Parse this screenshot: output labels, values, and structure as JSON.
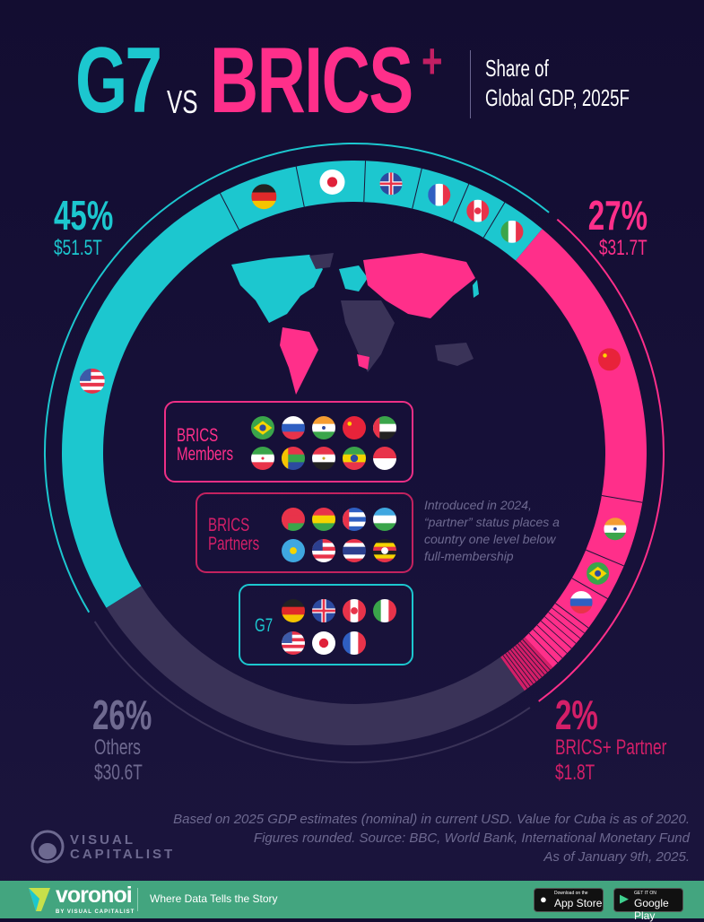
{
  "header": {
    "title_g7": "G7",
    "title_vs": "VS",
    "title_brics": "BRICS",
    "title_plus": "+",
    "subtitle_line1": "Share of",
    "subtitle_line2": "Global GDP, 2025F"
  },
  "labels": {
    "g7": {
      "percent": "45%",
      "value": "$51.5T"
    },
    "brics": {
      "percent": "27%",
      "value": "$31.7T"
    },
    "others": {
      "percent": "26%",
      "name": "Others",
      "value": "$30.6T"
    },
    "partner": {
      "percent": "2%",
      "name": "BRICS+ Partner",
      "value": "$1.8T"
    }
  },
  "legend": {
    "members": {
      "label_line1": "BRICS",
      "label_line2": "Members",
      "flags": [
        "flag-brazil-icon",
        "flag-russia-icon",
        "flag-india-icon",
        "flag-china-icon",
        "flag-uae-icon",
        "flag-iran-icon",
        "flag-south-africa-icon",
        "flag-egypt-icon",
        "flag-ethiopia-icon",
        "flag-indonesia-icon"
      ]
    },
    "partners": {
      "label_line1": "BRICS",
      "label_line2": "Partners",
      "flags": [
        "flag-belarus-icon",
        "flag-bolivia-icon",
        "flag-cuba-icon",
        "flag-uzbekistan-icon",
        "flag-kazakhstan-icon",
        "flag-malaysia-icon",
        "flag-thailand-icon",
        "flag-uganda-icon"
      ]
    },
    "g7": {
      "label": "G7",
      "flags": [
        "flag-germany-icon",
        "flag-uk-icon",
        "flag-canada-icon",
        "flag-italy-icon",
        "flag-usa-icon",
        "flag-japan-icon",
        "flag-france-icon"
      ]
    }
  },
  "note": {
    "line1": "Introduced in 2024,",
    "line2": "“partner” status places a",
    "line3": "country one level below",
    "line4": "full-membership"
  },
  "source": {
    "line1": "Based on 2025 GDP estimates (nominal) in current USD. Value for Cuba is as of 2020.",
    "line2": "Figures rounded. Source: BBC, World Bank, International Monetary Fund",
    "line3": "As of January 9th, 2025."
  },
  "brand": {
    "logo_line1": "VISUAL",
    "logo_line2": "CAPITALIST"
  },
  "footer": {
    "brand": "voronoi",
    "brand_sub": "BY VISUAL CAPITALIST",
    "tagline": "Where Data Tells the Story",
    "app_store_small": "Download on the",
    "app_store": "App Store",
    "google_play_small": "GET IT ON",
    "google_play": "Google Play"
  },
  "colors": {
    "g7": "#1cc7cf",
    "brics": "#ff2f8a",
    "partner": "#d41f68",
    "others": "#3a3358",
    "background": "#130d31",
    "footer": "#43a57f"
  },
  "chart_data": {
    "type": "pie",
    "style": "donut",
    "unit": "% of global GDP",
    "groups": [
      {
        "name": "G7",
        "share": 45,
        "value_usd_trillion": 51.5,
        "segments": [
          {
            "country": "flag-usa-icon",
            "share": 26.3
          },
          {
            "country": "flag-germany-icon",
            "share": 4.4
          },
          {
            "country": "flag-japan-icon",
            "share": 3.8
          },
          {
            "country": "flag-uk-icon",
            "share": 3.1
          },
          {
            "country": "flag-france-icon",
            "share": 2.7
          },
          {
            "country": "flag-canada-icon",
            "share": 2.2
          },
          {
            "country": "flag-italy-icon",
            "share": 2.5
          }
        ]
      },
      {
        "name": "BRICS Members",
        "share": 27,
        "value_usd_trillion": 31.7,
        "segments": [
          {
            "country": "flag-china-icon",
            "share": 16.6
          },
          {
            "country": "flag-india-icon",
            "share": 3.6
          },
          {
            "country": "flag-brazil-icon",
            "share": 2.0
          },
          {
            "country": "flag-russia-icon",
            "share": 1.9
          },
          {
            "country": "other-members",
            "share": 2.9
          }
        ]
      },
      {
        "name": "BRICS+ Partner",
        "share": 2,
        "value_usd_trillion": 1.8,
        "segments": []
      },
      {
        "name": "Others",
        "share": 26,
        "value_usd_trillion": 30.6,
        "segments": []
      }
    ]
  }
}
